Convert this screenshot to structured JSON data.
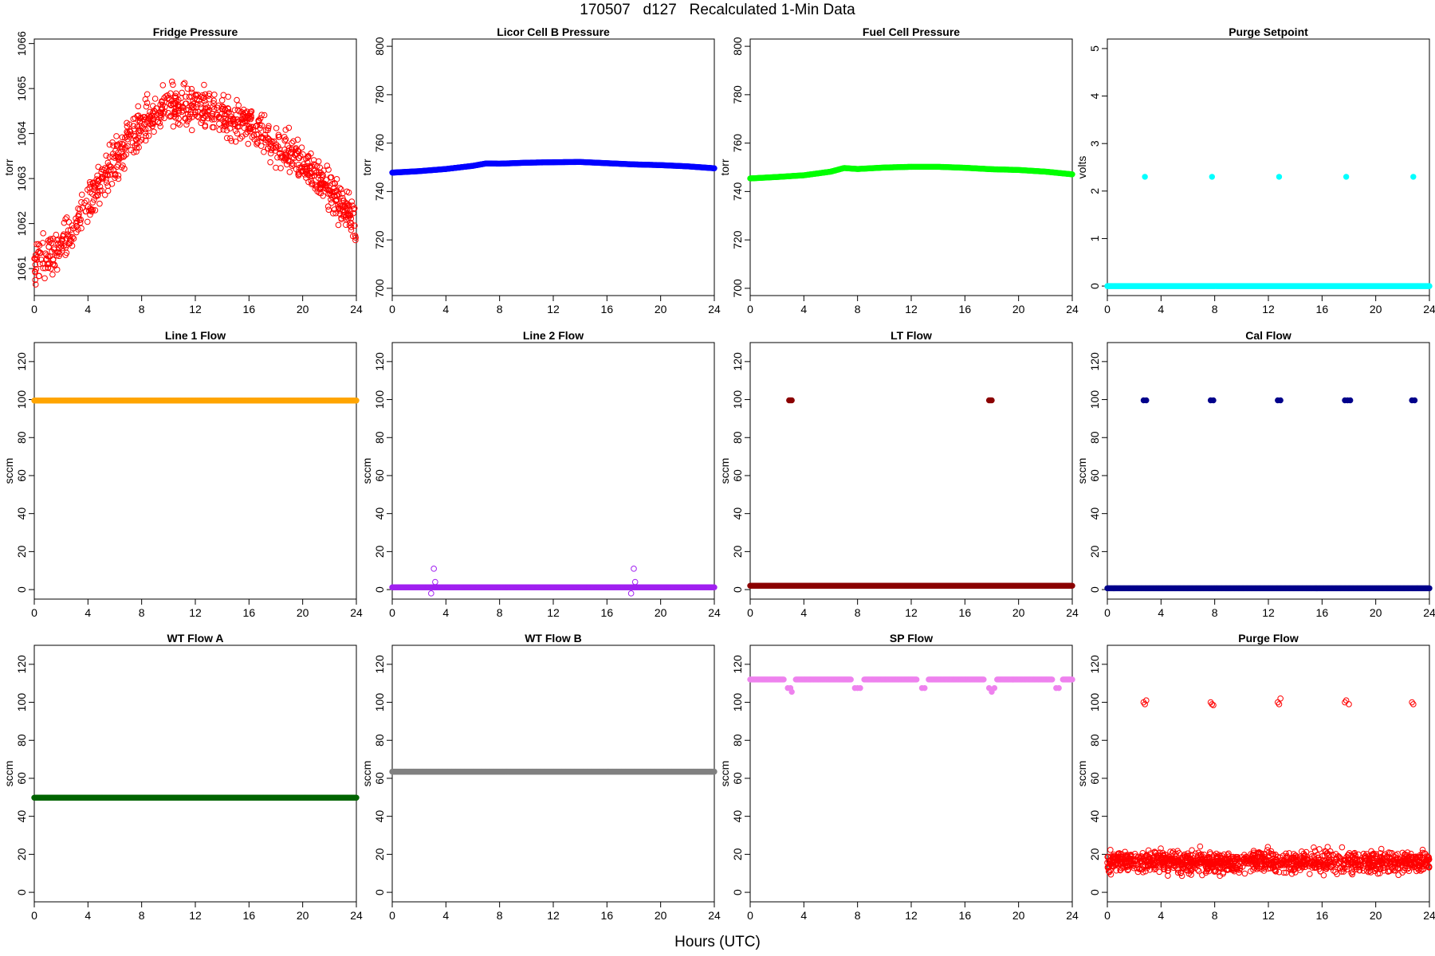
{
  "title": "170507   d127   Recalculated 1-Min Data",
  "xlabel": "Hours (UTC)",
  "colors": {
    "fridge": "#ff0000",
    "licor": "#0000ff",
    "fuel": "#00ff00",
    "purge_sp": "#00ffff",
    "line1": "#ffa500",
    "line2": "#a020f0",
    "lt": "#8b0000",
    "cal": "#00008b",
    "wta": "#006400",
    "wtb": "#808080",
    "sp": "#ee82ee",
    "purge": "#ff0000"
  },
  "chart_data": [
    {
      "type": "scatter",
      "title": "Fridge Pressure",
      "ylabel": "torr",
      "xlim": [
        0,
        24
      ],
      "ylim": [
        1060.4,
        1066.1
      ],
      "xticks": [
        0,
        4,
        8,
        12,
        16,
        20,
        24
      ],
      "yticks": [
        1061,
        1062,
        1063,
        1064,
        1065,
        1066
      ],
      "color": "#ff0000",
      "marker": "open",
      "x": [
        0,
        1,
        2,
        3,
        4,
        5,
        6,
        7,
        8,
        9,
        10,
        11,
        12,
        13,
        14,
        15,
        16,
        17,
        18,
        19,
        20,
        21,
        22,
        23,
        24
      ],
      "y": [
        1061.1,
        1061.3,
        1061.5,
        1061.9,
        1062.4,
        1062.9,
        1063.4,
        1063.8,
        1064.2,
        1064.4,
        1064.6,
        1064.6,
        1064.6,
        1064.5,
        1064.4,
        1064.3,
        1064.2,
        1064.0,
        1063.8,
        1063.6,
        1063.4,
        1063.1,
        1062.8,
        1062.4,
        1061.9
      ]
    },
    {
      "type": "scatter",
      "title": "Licor Cell B Pressure",
      "ylabel": "torr",
      "xlim": [
        0,
        24
      ],
      "ylim": [
        697,
        803
      ],
      "xticks": [
        0,
        4,
        8,
        12,
        16,
        20,
        24
      ],
      "yticks": [
        700,
        720,
        740,
        760,
        780,
        800
      ],
      "color": "#0000ff",
      "marker": "filled",
      "x": [
        0,
        2,
        4,
        6,
        7,
        8,
        10,
        12,
        14,
        16,
        18,
        20,
        22,
        24
      ],
      "y": [
        747.8,
        748.4,
        749.3,
        750.6,
        751.6,
        751.5,
        751.9,
        752.1,
        752.2,
        751.7,
        751.2,
        750.9,
        750.4,
        749.6
      ]
    },
    {
      "type": "scatter",
      "title": "Fuel Cell Pressure",
      "ylabel": "torr",
      "xlim": [
        0,
        24
      ],
      "ylim": [
        697,
        803
      ],
      "xticks": [
        0,
        4,
        8,
        12,
        16,
        20,
        24
      ],
      "yticks": [
        700,
        720,
        740,
        760,
        780,
        800
      ],
      "color": "#00ff00",
      "marker": "filled",
      "x": [
        0,
        2,
        4,
        6,
        7,
        8,
        10,
        12,
        14,
        16,
        18,
        20,
        22,
        24
      ],
      "y": [
        745.4,
        746.0,
        746.7,
        748.2,
        749.7,
        749.3,
        749.9,
        750.2,
        750.2,
        749.8,
        749.2,
        748.9,
        748.2,
        747.1
      ]
    },
    {
      "type": "scatter",
      "title": "Purge Setpoint",
      "ylabel": "volts",
      "xlim": [
        0,
        24
      ],
      "ylim": [
        -0.2,
        5.2
      ],
      "xticks": [
        0,
        4,
        8,
        12,
        16,
        20,
        24
      ],
      "yticks": [
        0,
        1,
        2,
        3,
        4,
        5
      ],
      "color": "#00ffff",
      "marker": "filled",
      "series": [
        {
          "x": [
            0,
            24
          ],
          "y": [
            0,
            0
          ],
          "kind": "baseline"
        },
        {
          "x": [
            2.8,
            7.8,
            12.8,
            17.8,
            22.8
          ],
          "y": [
            2.3,
            2.3,
            2.3,
            2.3,
            2.3
          ],
          "kind": "points"
        }
      ]
    },
    {
      "type": "scatter",
      "title": "Line 1 Flow",
      "ylabel": "sccm",
      "xlim": [
        0,
        24
      ],
      "ylim": [
        -5,
        130
      ],
      "xticks": [
        0,
        4,
        8,
        12,
        16,
        20,
        24
      ],
      "yticks": [
        0,
        20,
        40,
        60,
        80,
        100,
        120
      ],
      "color": "#ffa500",
      "marker": "filled",
      "series": [
        {
          "x": [
            0,
            24
          ],
          "y": [
            99.5,
            99.5
          ],
          "kind": "baseline"
        }
      ]
    },
    {
      "type": "scatter",
      "title": "Line 2 Flow",
      "ylabel": "sccm",
      "xlim": [
        0,
        24
      ],
      "ylim": [
        -5,
        130
      ],
      "xticks": [
        0,
        4,
        8,
        12,
        16,
        20,
        24
      ],
      "yticks": [
        0,
        20,
        40,
        60,
        80,
        100,
        120
      ],
      "color": "#a020f0",
      "marker": "filled",
      "series": [
        {
          "x": [
            0,
            24
          ],
          "y": [
            1.2,
            1.2
          ],
          "kind": "baseline"
        },
        {
          "x": [
            3.1,
            3.2,
            2.9,
            18.0,
            18.1,
            17.8
          ],
          "y": [
            11,
            4,
            -2,
            11,
            4,
            -2
          ],
          "kind": "points",
          "marker": "open"
        }
      ]
    },
    {
      "type": "scatter",
      "title": "LT Flow",
      "ylabel": "sccm",
      "xlim": [
        0,
        24
      ],
      "ylim": [
        -5,
        130
      ],
      "xticks": [
        0,
        4,
        8,
        12,
        16,
        20,
        24
      ],
      "yticks": [
        0,
        20,
        40,
        60,
        80,
        100,
        120
      ],
      "color": "#8b0000",
      "marker": "filled",
      "series": [
        {
          "x": [
            0,
            24
          ],
          "y": [
            2,
            2
          ],
          "kind": "baseline"
        },
        {
          "x": [
            2.9,
            3.0,
            3.1,
            17.8,
            17.9,
            18.0
          ],
          "y": [
            99.6,
            99.6,
            99.6,
            99.6,
            99.6,
            99.6
          ],
          "kind": "points"
        }
      ]
    },
    {
      "type": "scatter",
      "title": "Cal Flow",
      "ylabel": "sccm",
      "xlim": [
        0,
        24
      ],
      "ylim": [
        -5,
        130
      ],
      "xticks": [
        0,
        4,
        8,
        12,
        16,
        20,
        24
      ],
      "yticks": [
        0,
        20,
        40,
        60,
        80,
        100,
        120
      ],
      "color": "#00008b",
      "marker": "filled",
      "series": [
        {
          "x": [
            0,
            24
          ],
          "y": [
            0.7,
            0.7
          ],
          "kind": "baseline"
        },
        {
          "x": [
            2.7,
            2.9,
            7.7,
            7.9,
            12.7,
            12.9,
            17.7,
            17.9,
            18.1,
            22.7,
            22.9
          ],
          "y": [
            99.6,
            99.6,
            99.6,
            99.6,
            99.6,
            99.6,
            99.6,
            99.6,
            99.6,
            99.6,
            99.6
          ],
          "kind": "points"
        }
      ]
    },
    {
      "type": "scatter",
      "title": "WT Flow A",
      "ylabel": "sccm",
      "xlim": [
        0,
        24
      ],
      "ylim": [
        -5,
        130
      ],
      "xticks": [
        0,
        4,
        8,
        12,
        16,
        20,
        24
      ],
      "yticks": [
        0,
        20,
        40,
        60,
        80,
        100,
        120
      ],
      "color": "#006400",
      "marker": "filled",
      "series": [
        {
          "x": [
            0,
            24
          ],
          "y": [
            49.8,
            49.8
          ],
          "kind": "baseline"
        }
      ]
    },
    {
      "type": "scatter",
      "title": "WT Flow B",
      "ylabel": "sccm",
      "xlim": [
        0,
        24
      ],
      "ylim": [
        -5,
        130
      ],
      "xticks": [
        0,
        4,
        8,
        12,
        16,
        20,
        24
      ],
      "yticks": [
        0,
        20,
        40,
        60,
        80,
        100,
        120
      ],
      "color": "#808080",
      "marker": "filled",
      "series": [
        {
          "x": [
            0,
            24
          ],
          "y": [
            63.5,
            63.5
          ],
          "kind": "baseline"
        }
      ]
    },
    {
      "type": "scatter",
      "title": "SP Flow",
      "ylabel": "sccm",
      "xlim": [
        0,
        24
      ],
      "ylim": [
        -5,
        130
      ],
      "xticks": [
        0,
        4,
        8,
        12,
        16,
        20,
        24
      ],
      "yticks": [
        0,
        20,
        40,
        60,
        80,
        100,
        120
      ],
      "color": "#ee82ee",
      "marker": "filled",
      "series": [
        {
          "x": [
            0,
            2.5
          ],
          "y": [
            112,
            112
          ],
          "kind": "baseline"
        },
        {
          "x": [
            3.4,
            7.5
          ],
          "y": [
            112,
            112
          ],
          "kind": "baseline"
        },
        {
          "x": [
            8.5,
            12.4
          ],
          "y": [
            112,
            112
          ],
          "kind": "baseline"
        },
        {
          "x": [
            13.3,
            17.4
          ],
          "y": [
            112,
            112
          ],
          "kind": "baseline"
        },
        {
          "x": [
            18.4,
            22.5
          ],
          "y": [
            112,
            112
          ],
          "kind": "baseline"
        },
        {
          "x": [
            23.3,
            24
          ],
          "y": [
            112,
            112
          ],
          "kind": "baseline"
        },
        {
          "x": [
            2.8,
            3.0,
            3.1,
            7.8,
            8.0,
            8.2,
            12.8,
            13.0,
            17.8,
            18.0,
            18.2,
            22.8,
            23.0
          ],
          "y": [
            107.5,
            107.5,
            105.5,
            107.5,
            107.5,
            107.5,
            107.5,
            107.5,
            107.5,
            105.5,
            107.5,
            107.5,
            107.5
          ],
          "kind": "points"
        }
      ]
    },
    {
      "type": "scatter",
      "title": "Purge Flow",
      "ylabel": "sccm",
      "xlim": [
        0,
        24
      ],
      "ylim": [
        -5,
        130
      ],
      "xticks": [
        0,
        4,
        8,
        12,
        16,
        20,
        24
      ],
      "yticks": [
        0,
        20,
        40,
        60,
        80,
        100,
        120
      ],
      "color": "#ff0000",
      "marker": "open",
      "series": [
        {
          "x": [
            0,
            24
          ],
          "y": [
            16,
            16
          ],
          "kind": "noise",
          "spread": 4
        },
        {
          "x": [
            2.7,
            2.8,
            2.9,
            7.7,
            7.8,
            7.9,
            12.7,
            12.8,
            12.9,
            17.7,
            17.8,
            18.0,
            22.7,
            22.8
          ],
          "y": [
            100,
            99,
            101,
            100,
            99,
            98.5,
            100,
            99,
            102,
            100,
            101,
            99,
            100,
            99
          ],
          "kind": "points"
        }
      ]
    }
  ]
}
